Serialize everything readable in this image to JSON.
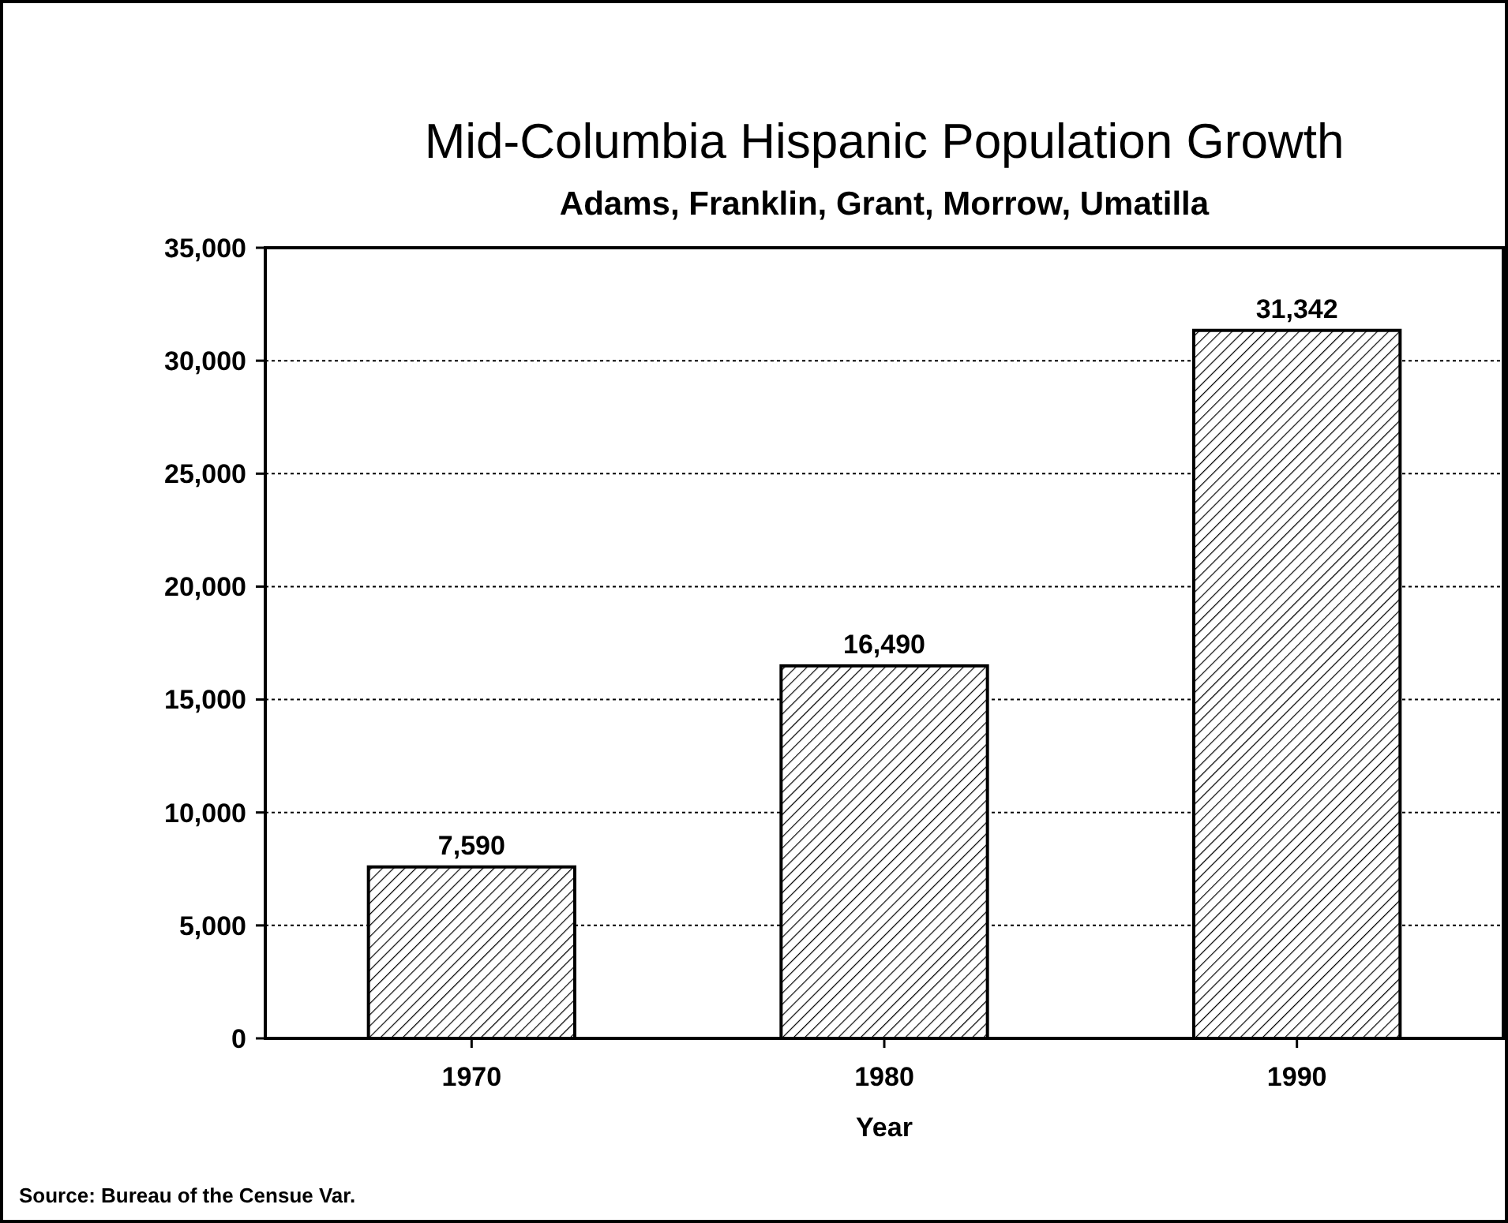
{
  "chart_data": {
    "type": "bar",
    "title": "Mid-Columbia Hispanic Population Growth",
    "subtitle": "Adams, Franklin, Grant, Morrow, Umatilla",
    "xlabel": "Year",
    "categories": [
      "1970",
      "1980",
      "1990"
    ],
    "values": [
      7590,
      16490,
      31342
    ],
    "color": "#000000",
    "value_labels": [
      "7,590",
      "16,490",
      "31,342"
    ],
    "ylim": [
      0,
      35000
    ],
    "yticks": [
      {
        "value": 0,
        "label": "0"
      },
      {
        "value": 5000,
        "label": "5,000"
      },
      {
        "value": 10000,
        "label": "10,000"
      },
      {
        "value": 15000,
        "label": "15,000"
      },
      {
        "value": 20000,
        "label": "20,000"
      },
      {
        "value": 25000,
        "label": "25,000"
      },
      {
        "value": 30000,
        "label": "30,000"
      },
      {
        "value": 35000,
        "label": "35,000"
      }
    ],
    "grid": "y",
    "annotations": [
      "Source: Bureau of the Censue Var."
    ]
  }
}
